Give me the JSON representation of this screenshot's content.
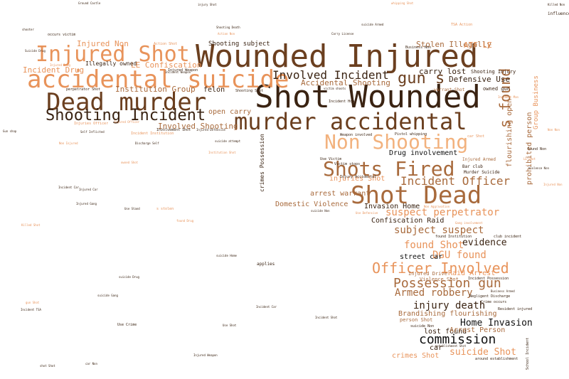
{
  "palette": {
    "dark": "#3a2312",
    "brown": "#6b3f1f",
    "mid": "#a86a3c",
    "orange": "#e8935a",
    "light": "#f2b27e",
    "faint": "#f6c89f",
    "black": "#111111"
  },
  "words": [
    {
      "t": "Wounded Injured",
      "c": "brown"
    },
    {
      "t": "Shot Wounded",
      "c": "dark"
    },
    {
      "t": "accidental suicide",
      "c": "orange"
    },
    {
      "t": "Injured Shot",
      "c": "orange"
    },
    {
      "t": "Dead murder",
      "c": "brown"
    },
    {
      "t": "murder accidental",
      "c": "brown"
    },
    {
      "t": "Shooting Incident",
      "c": "dark"
    },
    {
      "t": "Non Shooting",
      "c": "light"
    },
    {
      "t": "Shots Fired",
      "c": "mid"
    },
    {
      "t": "Shot Dead",
      "c": "mid"
    },
    {
      "t": "Officer Involved",
      "c": "orange"
    },
    {
      "t": "Possession gun",
      "c": "mid"
    },
    {
      "t": "commission",
      "c": "black"
    },
    {
      "t": "gun s",
      "c": "brown"
    },
    {
      "t": "s found",
      "c": "mid"
    },
    {
      "t": "Involved Incident",
      "c": "dark"
    },
    {
      "t": "Incident Officer",
      "c": "mid"
    },
    {
      "t": "suspect perpetrator",
      "c": "orange"
    },
    {
      "t": "subject suspect",
      "c": "mid"
    },
    {
      "t": "found Shot",
      "c": "orange"
    },
    {
      "t": "DGU found",
      "c": "orange"
    },
    {
      "t": "Armed robbery",
      "c": "mid"
    },
    {
      "t": "injury death",
      "c": "dark"
    },
    {
      "t": "Home Invasion",
      "c": "black"
    },
    {
      "t": "suicide Shot",
      "c": "orange"
    },
    {
      "t": "evidence",
      "c": "dark"
    },
    {
      "t": "Institution Group",
      "c": "mid"
    },
    {
      "t": "LE Confiscation",
      "c": "orange"
    },
    {
      "t": "Involved Shooting",
      "c": "mid"
    },
    {
      "t": "Accidental Shooting",
      "c": "mid"
    },
    {
      "t": "Injured Non",
      "c": "orange"
    },
    {
      "t": "Incident Drug",
      "c": "orange"
    },
    {
      "t": "Defensive Use",
      "c": "dark"
    },
    {
      "t": "carry lost",
      "c": "dark"
    },
    {
      "t": "Stolen Illegally",
      "c": "mid"
    },
    {
      "t": "ATF LE",
      "c": "orange"
    },
    {
      "t": "Domestic Violence",
      "c": "mid"
    },
    {
      "t": "Invasion Home",
      "c": "dark"
    },
    {
      "t": "Confiscation Raid",
      "c": "dark"
    },
    {
      "t": "Drug involvement",
      "c": "black"
    },
    {
      "t": "injuries Shot",
      "c": "orange"
    },
    {
      "t": "arrest warrant",
      "c": "mid"
    },
    {
      "t": "Raid Arrest",
      "c": "orange"
    },
    {
      "t": "Brandishing flourishing",
      "c": "mid"
    },
    {
      "t": "lost found",
      "c": "dark"
    },
    {
      "t": "Arrest Person",
      "c": "mid"
    },
    {
      "t": "crimes Shot",
      "c": "orange"
    },
    {
      "t": "street car",
      "c": "black"
    },
    {
      "t": "felon",
      "c": "dark"
    },
    {
      "t": "open carry",
      "c": "mid"
    },
    {
      "t": "Shooting subject",
      "c": "dark"
    },
    {
      "t": "Illegally owned",
      "c": "dark"
    },
    {
      "t": "crimes Possession",
      "c": "dark"
    },
    {
      "t": "flourishing open",
      "c": "mid"
    },
    {
      "t": "prohibited person",
      "c": "mid"
    },
    {
      "t": "Group Business",
      "c": "orange"
    },
    {
      "t": "Injured Drive",
      "c": "mid"
    },
    {
      "t": "Violence Shot",
      "c": "mid"
    },
    {
      "t": "person Shot",
      "c": "mid"
    },
    {
      "t": "car",
      "c": "dark"
    },
    {
      "t": "Shooting Injury",
      "c": "dark"
    },
    {
      "t": "owned gun",
      "c": "dark"
    },
    {
      "t": "warrant Shot",
      "c": "mid"
    },
    {
      "t": "Injured Armed",
      "c": "mid"
    },
    {
      "t": "Murder Suicide",
      "c": "dark"
    },
    {
      "t": "Bar club",
      "c": "dark"
    },
    {
      "t": "Injured Weapon",
      "c": "dark"
    },
    {
      "t": "perpetrator Shot",
      "c": "dark"
    },
    {
      "t": "Shooting Shot",
      "c": "dark"
    },
    {
      "t": "Use Victim",
      "c": "dark"
    },
    {
      "t": "Victim stops",
      "c": "dark"
    },
    {
      "t": "Pistol whipping",
      "c": "dark"
    },
    {
      "t": "Weapon involved",
      "c": "dark"
    },
    {
      "t": "Injury Accidental",
      "c": "dark"
    },
    {
      "t": "Negligent Discharge",
      "c": "dark"
    },
    {
      "t": "Crime occurs",
      "c": "dark"
    },
    {
      "t": "Resident injured",
      "c": "dark"
    },
    {
      "t": "Incident Home",
      "c": "dark"
    },
    {
      "t": "suicide Non",
      "c": "dark"
    },
    {
      "t": "around establishment",
      "c": "dark"
    },
    {
      "t": "School Incident",
      "c": "dark"
    },
    {
      "t": "applies",
      "c": "dark"
    },
    {
      "t": "club incident",
      "c": "dark"
    },
    {
      "t": "found Institution",
      "c": "dark"
    },
    {
      "t": "Involvement Shot",
      "c": "dark"
    },
    {
      "t": "Injured Defensive",
      "c": "dark"
    },
    {
      "t": "Injured Gang",
      "c": "dark"
    },
    {
      "t": "Incident Car",
      "c": "dark"
    },
    {
      "t": "Use Stand",
      "c": "dark"
    },
    {
      "t": "s stolen",
      "c": "orange"
    },
    {
      "t": "Use Crime",
      "c": "dark"
    },
    {
      "t": "Incident TSA",
      "c": "dark"
    },
    {
      "t": "found Non",
      "c": "dark"
    },
    {
      "t": "Violence Non",
      "c": "dark"
    },
    {
      "t": "Killed Non",
      "c": "dark"
    },
    {
      "t": "Ground Castle",
      "c": "dark"
    },
    {
      "t": "injury Shot",
      "c": "dark"
    },
    {
      "t": "influence",
      "c": "dark"
    },
    {
      "t": "suicide Armed",
      "c": "dark"
    },
    {
      "t": "Incident Institution",
      "c": "orange"
    },
    {
      "t": "car Shot",
      "c": "orange"
    },
    {
      "t": "Action Shot",
      "c": "orange"
    },
    {
      "t": "Injured Officer",
      "c": "orange"
    },
    {
      "t": "Injuries Officer",
      "c": "orange"
    },
    {
      "t": "Discharge Self",
      "c": "dark"
    },
    {
      "t": "suicide Drug",
      "c": "dark"
    },
    {
      "t": "suicide Gang",
      "c": "dark"
    },
    {
      "t": "suicide Home",
      "c": "dark"
    },
    {
      "t": "suicide attempt",
      "c": "dark"
    },
    {
      "t": "Self Inflicted",
      "c": "dark"
    },
    {
      "t": "Shooting Death",
      "c": "dark"
    },
    {
      "t": "whipping Shot",
      "c": "orange"
    },
    {
      "t": "Carry License",
      "c": "dark"
    },
    {
      "t": "Business Non",
      "c": "dark"
    },
    {
      "t": "TSA Action",
      "c": "orange"
    },
    {
      "t": "victim shoots",
      "c": "dark"
    },
    {
      "t": "Gang involvement",
      "c": "orange"
    },
    {
      "t": "Non Aggravation",
      "c": "orange"
    },
    {
      "t": "Use Defensive",
      "c": "orange"
    },
    {
      "t": "Injured Drug",
      "c": "orange"
    },
    {
      "t": "Suicide Drug",
      "c": "dark"
    },
    {
      "t": "Institution Shot",
      "c": "orange"
    },
    {
      "t": "Incident Weapon",
      "c": "dark"
    },
    {
      "t": "occurs victim",
      "c": "dark"
    },
    {
      "t": "Injured Car",
      "c": "dark"
    },
    {
      "t": "Injured Weapon",
      "c": "dark"
    },
    {
      "t": "Use Shot",
      "c": "dark"
    },
    {
      "t": "car Non",
      "c": "dark"
    },
    {
      "t": "shot Shot",
      "c": "dark"
    },
    {
      "t": "Incident Car",
      "c": "dark"
    },
    {
      "t": "Incident Possession",
      "c": "dark"
    },
    {
      "t": "Business Armed",
      "c": "dark"
    },
    {
      "t": "establishment Shot",
      "c": "dark"
    },
    {
      "t": "suicide Non",
      "c": "dark"
    },
    {
      "t": "Incident Shot",
      "c": "dark"
    },
    {
      "t": "shooter",
      "c": "dark"
    },
    {
      "t": "owned Shot",
      "c": "orange"
    },
    {
      "t": "Gun shop",
      "c": "dark"
    },
    {
      "t": "Action Non",
      "c": "orange"
    },
    {
      "t": "LE Shot",
      "c": "orange"
    },
    {
      "t": "Injured Non",
      "c": "orange"
    },
    {
      "t": "gun Shot",
      "c": "orange"
    },
    {
      "t": "Killed Shot",
      "c": "orange"
    },
    {
      "t": "Non Non",
      "c": "orange"
    },
    {
      "t": "Incident Man",
      "c": "orange"
    },
    {
      "t": "Non Injured",
      "c": "orange"
    },
    {
      "t": "found Drug",
      "c": "orange"
    },
    {
      "t": "Injured Shot",
      "c": "orange"
    }
  ]
}
